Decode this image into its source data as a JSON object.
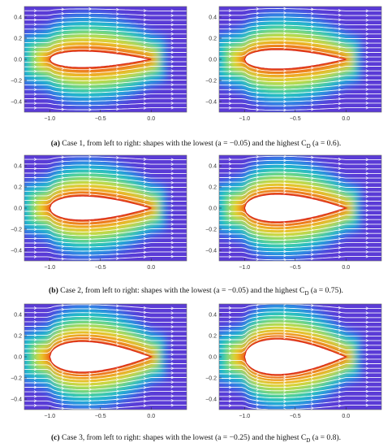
{
  "figure": {
    "rows": [
      {
        "caption_label": "(a)",
        "caption_text": " Case 1, from left to right: shapes with the lowest (a = −0.05) and the highest C",
        "caption_sub": "D",
        "caption_end": " (a = 0.6).",
        "panels": [
          {
            "a": -0.05
          },
          {
            "a": 0.6
          }
        ]
      },
      {
        "caption_label": "(b)",
        "caption_text": " Case 2, from left to right: shapes with the lowest (a = −0.05) and the highest C",
        "caption_sub": "D",
        "caption_end": " (a = 0.75).",
        "panels": [
          {
            "a": -0.05
          },
          {
            "a": 0.75
          }
        ]
      },
      {
        "caption_label": "(c)",
        "caption_text": " Case 3, from left to right: shapes with the lowest (a = −0.25) and the highest C",
        "caption_sub": "D",
        "caption_end": " (a = 0.8).",
        "panels": [
          {
            "a": -0.25
          },
          {
            "a": 0.8
          }
        ]
      }
    ],
    "x_ticks": [
      "−1.0",
      "−0.5",
      "0.0"
    ],
    "y_ticks": [
      "0.4",
      "0.2",
      "0.0",
      "−0.2",
      "−0.4"
    ],
    "x_tick_values": [
      -1.0,
      -0.5,
      0.0
    ],
    "y_tick_values": [
      0.4,
      0.2,
      0.0,
      -0.2,
      -0.4
    ],
    "xlim": [
      -1.25,
      0.35
    ],
    "ylim": [
      -0.5,
      0.5
    ],
    "colormap": "rainbow (red near body, violet far field)",
    "streamline_color": "#ffffff",
    "body_fill": "#ffffff"
  }
}
